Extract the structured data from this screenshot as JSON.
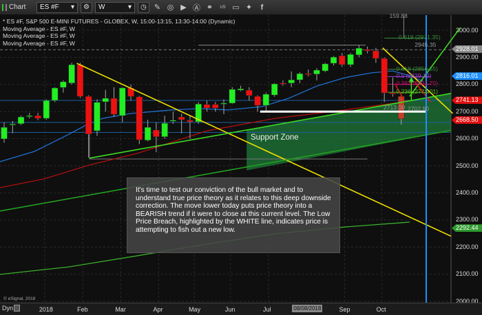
{
  "toolbar": {
    "title": "Chart",
    "symbol": "ES #F",
    "interval": "W",
    "icons": [
      "settings-icon",
      "clock-icon",
      "pencil-icon",
      "study-icon",
      "play-icon",
      "alert-icon",
      "link-icon",
      "us-icon",
      "comment-icon",
      "twitter-icon",
      "facebook-icon"
    ],
    "us_label": "US"
  },
  "legend": {
    "title": "* ES #F, S&P 500 E-MINI FUTURES - GLOBEX, W, 15:00-13:15, 13:30-14:00 (Dynamic)",
    "studies": [
      "Moving Average - ES #F, W",
      "Moving Average - ES #F, W",
      "Moving Average - ES #F, W"
    ]
  },
  "annotation": "It's time to test our conviction of the bull market and to understand true price theory as it relates to this deep downside correction.  The move lower today puts price theory into a BEARISH trend if it were to close at this current level.  The Low Price Breach, highlighted by the WHITE line, indicates price is attempting to fish out a new low.",
  "support_zone_label": "Support Zone",
  "watermark": "© eSignal, 2018",
  "xaxis": {
    "dyn_label": "Dyn",
    "highlight_date": "08/08/2018"
  },
  "chart_data": {
    "type": "candlestick",
    "ylim": [
      2000,
      3060
    ],
    "yticks": [
      3000,
      2900,
      2800,
      2700,
      2600,
      2500,
      2400,
      2300,
      2200,
      2100,
      2000
    ],
    "ytick_labels": [
      "3000.00",
      "2900.00",
      "2800.00",
      "2700.00",
      "2600.00",
      "2500.00",
      "2400.00",
      "2300.00",
      "2200.00",
      "2100.00",
      "2000.00"
    ],
    "xtick_labels": [
      {
        "label": "2018",
        "week": 5.8
      },
      {
        "label": "Feb",
        "week": 10.3
      },
      {
        "label": "Mar",
        "week": 14.8
      },
      {
        "label": "Apr",
        "week": 19.3
      },
      {
        "label": "May",
        "week": 23.5
      },
      {
        "label": "Jun",
        "week": 27.8
      },
      {
        "label": "Jul",
        "week": 32.3
      },
      {
        "label": "Sep",
        "week": 41.3
      },
      {
        "label": "Oct",
        "week": 45.7
      }
    ],
    "highlight_week": 36.8,
    "grid": true,
    "candles": [
      [
        2599,
        2660,
        2585,
        2642
      ],
      [
        2652,
        2665,
        2620,
        2654
      ],
      [
        2655,
        2685,
        2650,
        2680
      ],
      [
        2683,
        2695,
        2675,
        2685
      ],
      [
        2685,
        2695,
        2668,
        2675
      ],
      [
        2675,
        2745,
        2670,
        2741
      ],
      [
        2741,
        2790,
        2735,
        2787
      ],
      [
        2789,
        2815,
        2770,
        2810
      ],
      [
        2805,
        2880,
        2800,
        2873
      ],
      [
        2873,
        2880,
        2750,
        2756
      ],
      [
        2756,
        2760,
        2530,
        2617
      ],
      [
        2629,
        2745,
        2610,
        2734
      ],
      [
        2736,
        2780,
        2700,
        2749
      ],
      [
        2749,
        2790,
        2680,
        2690
      ],
      [
        2685,
        2790,
        2660,
        2787
      ],
      [
        2787,
        2800,
        2740,
        2756
      ],
      [
        2754,
        2758,
        2580,
        2596
      ],
      [
        2594,
        2670,
        2590,
        2642
      ],
      [
        2632,
        2660,
        2550,
        2607
      ],
      [
        2607,
        2685,
        2600,
        2657
      ],
      [
        2667,
        2700,
        2655,
        2668
      ],
      [
        2680,
        2692,
        2620,
        2670
      ],
      [
        2668,
        2685,
        2600,
        2662
      ],
      [
        2662,
        2735,
        2655,
        2728
      ],
      [
        2726,
        2740,
        2700,
        2713
      ],
      [
        2726,
        2735,
        2700,
        2713
      ],
      [
        2731,
        2745,
        2690,
        2731
      ],
      [
        2731,
        2790,
        2728,
        2782
      ],
      [
        2779,
        2795,
        2775,
        2784
      ],
      [
        2779,
        2790,
        2740,
        2759
      ],
      [
        2756,
        2760,
        2700,
        2723
      ],
      [
        2723,
        2770,
        2700,
        2764
      ],
      [
        2761,
        2805,
        2755,
        2802
      ],
      [
        2805,
        2815,
        2795,
        2802
      ],
      [
        2805,
        2848,
        2790,
        2817
      ],
      [
        2817,
        2845,
        2805,
        2840
      ],
      [
        2840,
        2855,
        2830,
        2838
      ],
      [
        2838,
        2860,
        2815,
        2853
      ],
      [
        2850,
        2880,
        2845,
        2876
      ],
      [
        2878,
        2905,
        2870,
        2901
      ],
      [
        2906,
        2916,
        2865,
        2873
      ],
      [
        2873,
        2916,
        2865,
        2911
      ],
      [
        2909,
        2944,
        2900,
        2934
      ],
      [
        2929,
        2940,
        2915,
        2924
      ],
      [
        2924,
        2935,
        2880,
        2896
      ],
      [
        2896,
        2900,
        2735,
        2769
      ],
      [
        2769,
        2826,
        2755,
        2765
      ],
      [
        2756,
        2760,
        2652,
        2673
      ]
    ],
    "candle_format": [
      "open",
      "high",
      "low",
      "close"
    ],
    "moving_averages": [
      {
        "color": "#1e6fd0",
        "points": [
          [
            0.5,
            2515
          ],
          [
            4.6,
            2553
          ],
          [
            8.7,
            2617
          ],
          [
            10.7,
            2650
          ],
          [
            12.7,
            2675
          ],
          [
            16,
            2693
          ],
          [
            20.9,
            2706
          ],
          [
            24.1,
            2711
          ],
          [
            27.4,
            2706
          ],
          [
            31.5,
            2718
          ],
          [
            34.7,
            2749
          ],
          [
            38,
            2794
          ],
          [
            41.3,
            2825
          ],
          [
            44.5,
            2843
          ],
          [
            47,
            2850
          ],
          [
            49,
            2832
          ],
          [
            50.6,
            2812
          ]
        ],
        "last": "2816.01"
      },
      {
        "color": "#b01010",
        "points": [
          [
            0.5,
            2419
          ],
          [
            5.8,
            2452
          ],
          [
            11.1,
            2503
          ],
          [
            16.8,
            2546
          ],
          [
            25,
            2629
          ],
          [
            33.1,
            2675
          ],
          [
            41.3,
            2706
          ],
          [
            49,
            2739
          ]
        ],
        "last": "2741.13"
      },
      {
        "color": "#3ab02a",
        "points": [
          [
            0.5,
            2099
          ],
          [
            8.7,
            2127
          ],
          [
            16.8,
            2168
          ],
          [
            25,
            2211
          ],
          [
            33.1,
            2249
          ],
          [
            41.3,
            2274
          ],
          [
            49,
            2292
          ]
        ],
        "last": "2292.44"
      }
    ],
    "price_tags": [
      {
        "value": 2928.01,
        "label": "2928.01",
        "color": "#888888"
      },
      {
        "value": 2816.01,
        "label": "2816.01",
        "color": "#1e90ff"
      },
      {
        "value": 2741.13,
        "label": "2741.13",
        "color": "#e01010"
      },
      {
        "value": 2668.5,
        "label": "2668.50",
        "color": "#e01010"
      },
      {
        "value": 2292.44,
        "label": "2292.44",
        "color": "#2e9a2e"
      }
    ],
    "horizontal_levels": [
      {
        "value": 2741,
        "color": "#1e5fa0"
      },
      {
        "value": 2660,
        "color": "#1e5fa0"
      },
      {
        "value": 2623,
        "color": "#1e5fa0"
      },
      {
        "value": 2928,
        "color": "#777777",
        "dashed": true
      }
    ],
    "trendlines": [
      {
        "name": "downtrend-line",
        "color": "#f0e000",
        "from": [
          9.6,
          2878
        ],
        "to": [
          53.9,
          2240
        ]
      },
      {
        "name": "short-downtrend-line",
        "color": "#f0e000",
        "from": [
          45.8,
          2935
        ],
        "to": [
          54.1,
          2693
        ]
      },
      {
        "name": "bullish-projection-line",
        "color": "#3cdc20",
        "from": [
          49,
          2756
        ],
        "to": [
          55,
          3010
        ]
      },
      {
        "name": "support-line-upper",
        "color": "#3cdc20",
        "from": [
          11.1,
          2528
        ],
        "to": [
          53.9,
          2767
        ]
      },
      {
        "name": "support-line-lower",
        "color": "#23a020",
        "from": [
          0.5,
          2333
        ],
        "to": [
          53.9,
          2630
        ]
      },
      {
        "name": "low-price-breach-line",
        "color": "#ffffff",
        "from": [
          31.3,
          2700
        ],
        "to": [
          50.9,
          2700
        ]
      }
    ],
    "fib_levels": [
      {
        "label": "0.618 (2971.35)",
        "value": 2971,
        "color": "#3c8a3c"
      },
      {
        "label": "2945.35",
        "value": 2945,
        "color": "#999999"
      },
      {
        "label": "0.618 (2856.55)",
        "value": 2856,
        "color": "#3c8a3c"
      },
      {
        "label": "0.5 (2829.12)",
        "value": 2829,
        "color": "#a040d0"
      },
      {
        "label": "0.382 (2801.70)",
        "value": 2801,
        "color": "#c0106a"
      },
      {
        "label": "0.236 (2771.01)",
        "value": 2771,
        "color": "#60c020"
      },
      {
        "label": "2713.00",
        "value": 2713,
        "color": "#999999"
      },
      {
        "label": "2702.90",
        "value": 2708,
        "color": "#999999"
      },
      {
        "label": "159.88",
        "value": 3052,
        "color": "#999999"
      }
    ]
  }
}
